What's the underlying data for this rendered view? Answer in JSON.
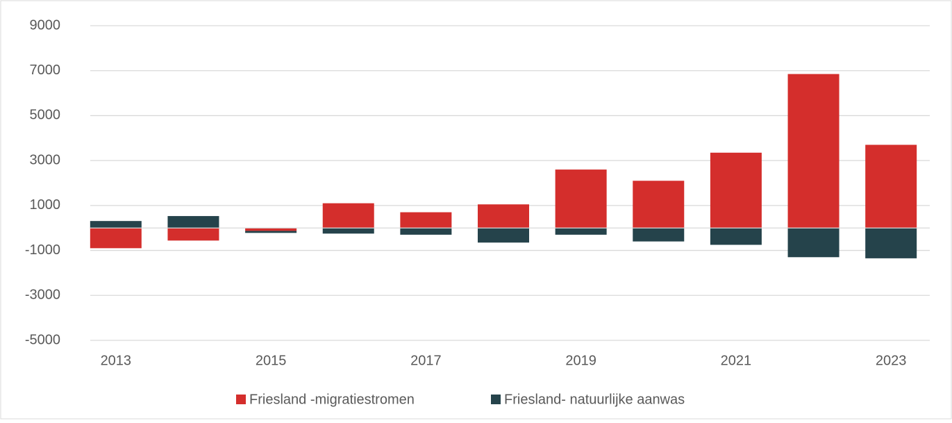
{
  "chart_data": {
    "type": "stacked_bar",
    "categories": [
      "2013",
      null,
      "2015",
      null,
      "2017",
      null,
      "2019",
      null,
      "2021",
      null,
      "2023"
    ],
    "series": [
      {
        "name": "Friesland -migratiestromen",
        "color": "#d42e2c",
        "values": [
          -900,
          -560,
          -130,
          1100,
          700,
          1050,
          2600,
          2100,
          3350,
          6850,
          3700
        ]
      },
      {
        "name": "Friesland- natuurlijke aanwas",
        "color": "#25434b",
        "values": [
          310,
          530,
          -90,
          -250,
          -300,
          -650,
          -300,
          -600,
          -750,
          -1300,
          -1350
        ]
      }
    ],
    "ylim": [
      -5000,
      9000
    ],
    "yticks": [
      -5000,
      -3000,
      -1000,
      1000,
      3000,
      5000,
      7000,
      9000
    ],
    "grid": true,
    "legend": "bottom"
  }
}
